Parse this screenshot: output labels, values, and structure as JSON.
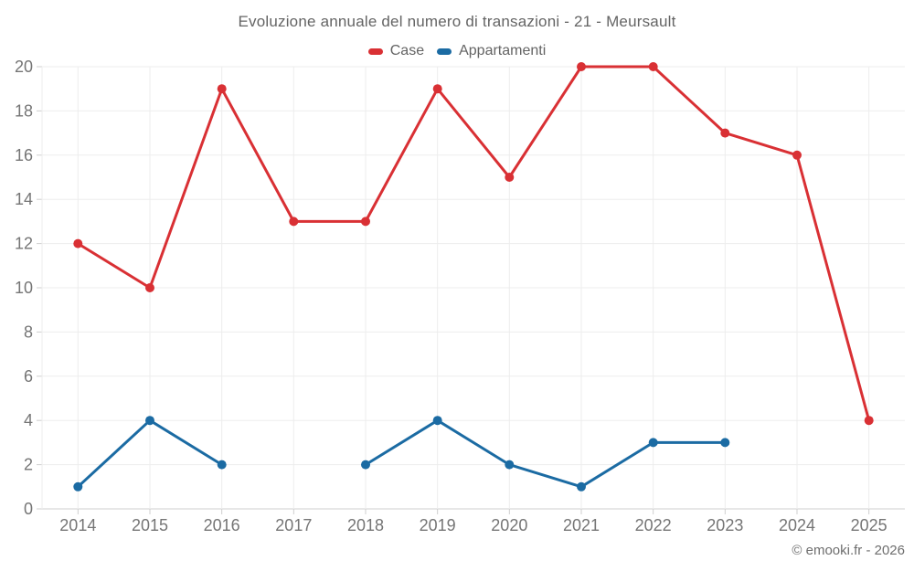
{
  "chart_data": {
    "type": "line",
    "title": "Evoluzione annuale del numero di transazioni - 21 - Meursault",
    "categories": [
      "2014",
      "2015",
      "2016",
      "2017",
      "2018",
      "2019",
      "2020",
      "2021",
      "2022",
      "2023",
      "2024",
      "2025"
    ],
    "series": [
      {
        "name": "Case",
        "color": "#d93034",
        "values": [
          12,
          10,
          19,
          13,
          13,
          19,
          15,
          20,
          20,
          17,
          16,
          4
        ]
      },
      {
        "name": "Appartamenti",
        "color": "#1b6ba3",
        "values": [
          1,
          4,
          2,
          null,
          2,
          4,
          2,
          1,
          3,
          3,
          null,
          null
        ]
      }
    ],
    "ylim": [
      0,
      20
    ],
    "ytick_step": 2,
    "grid": true,
    "legend_position": "top",
    "xlabel": "",
    "ylabel": ""
  },
  "footer": {
    "copyright": "© emooki.fr - 2026"
  },
  "colors": {
    "grid": "#ededed",
    "axis": "#cfcfcf",
    "tick_label": "#757575",
    "title_text": "#646464"
  }
}
